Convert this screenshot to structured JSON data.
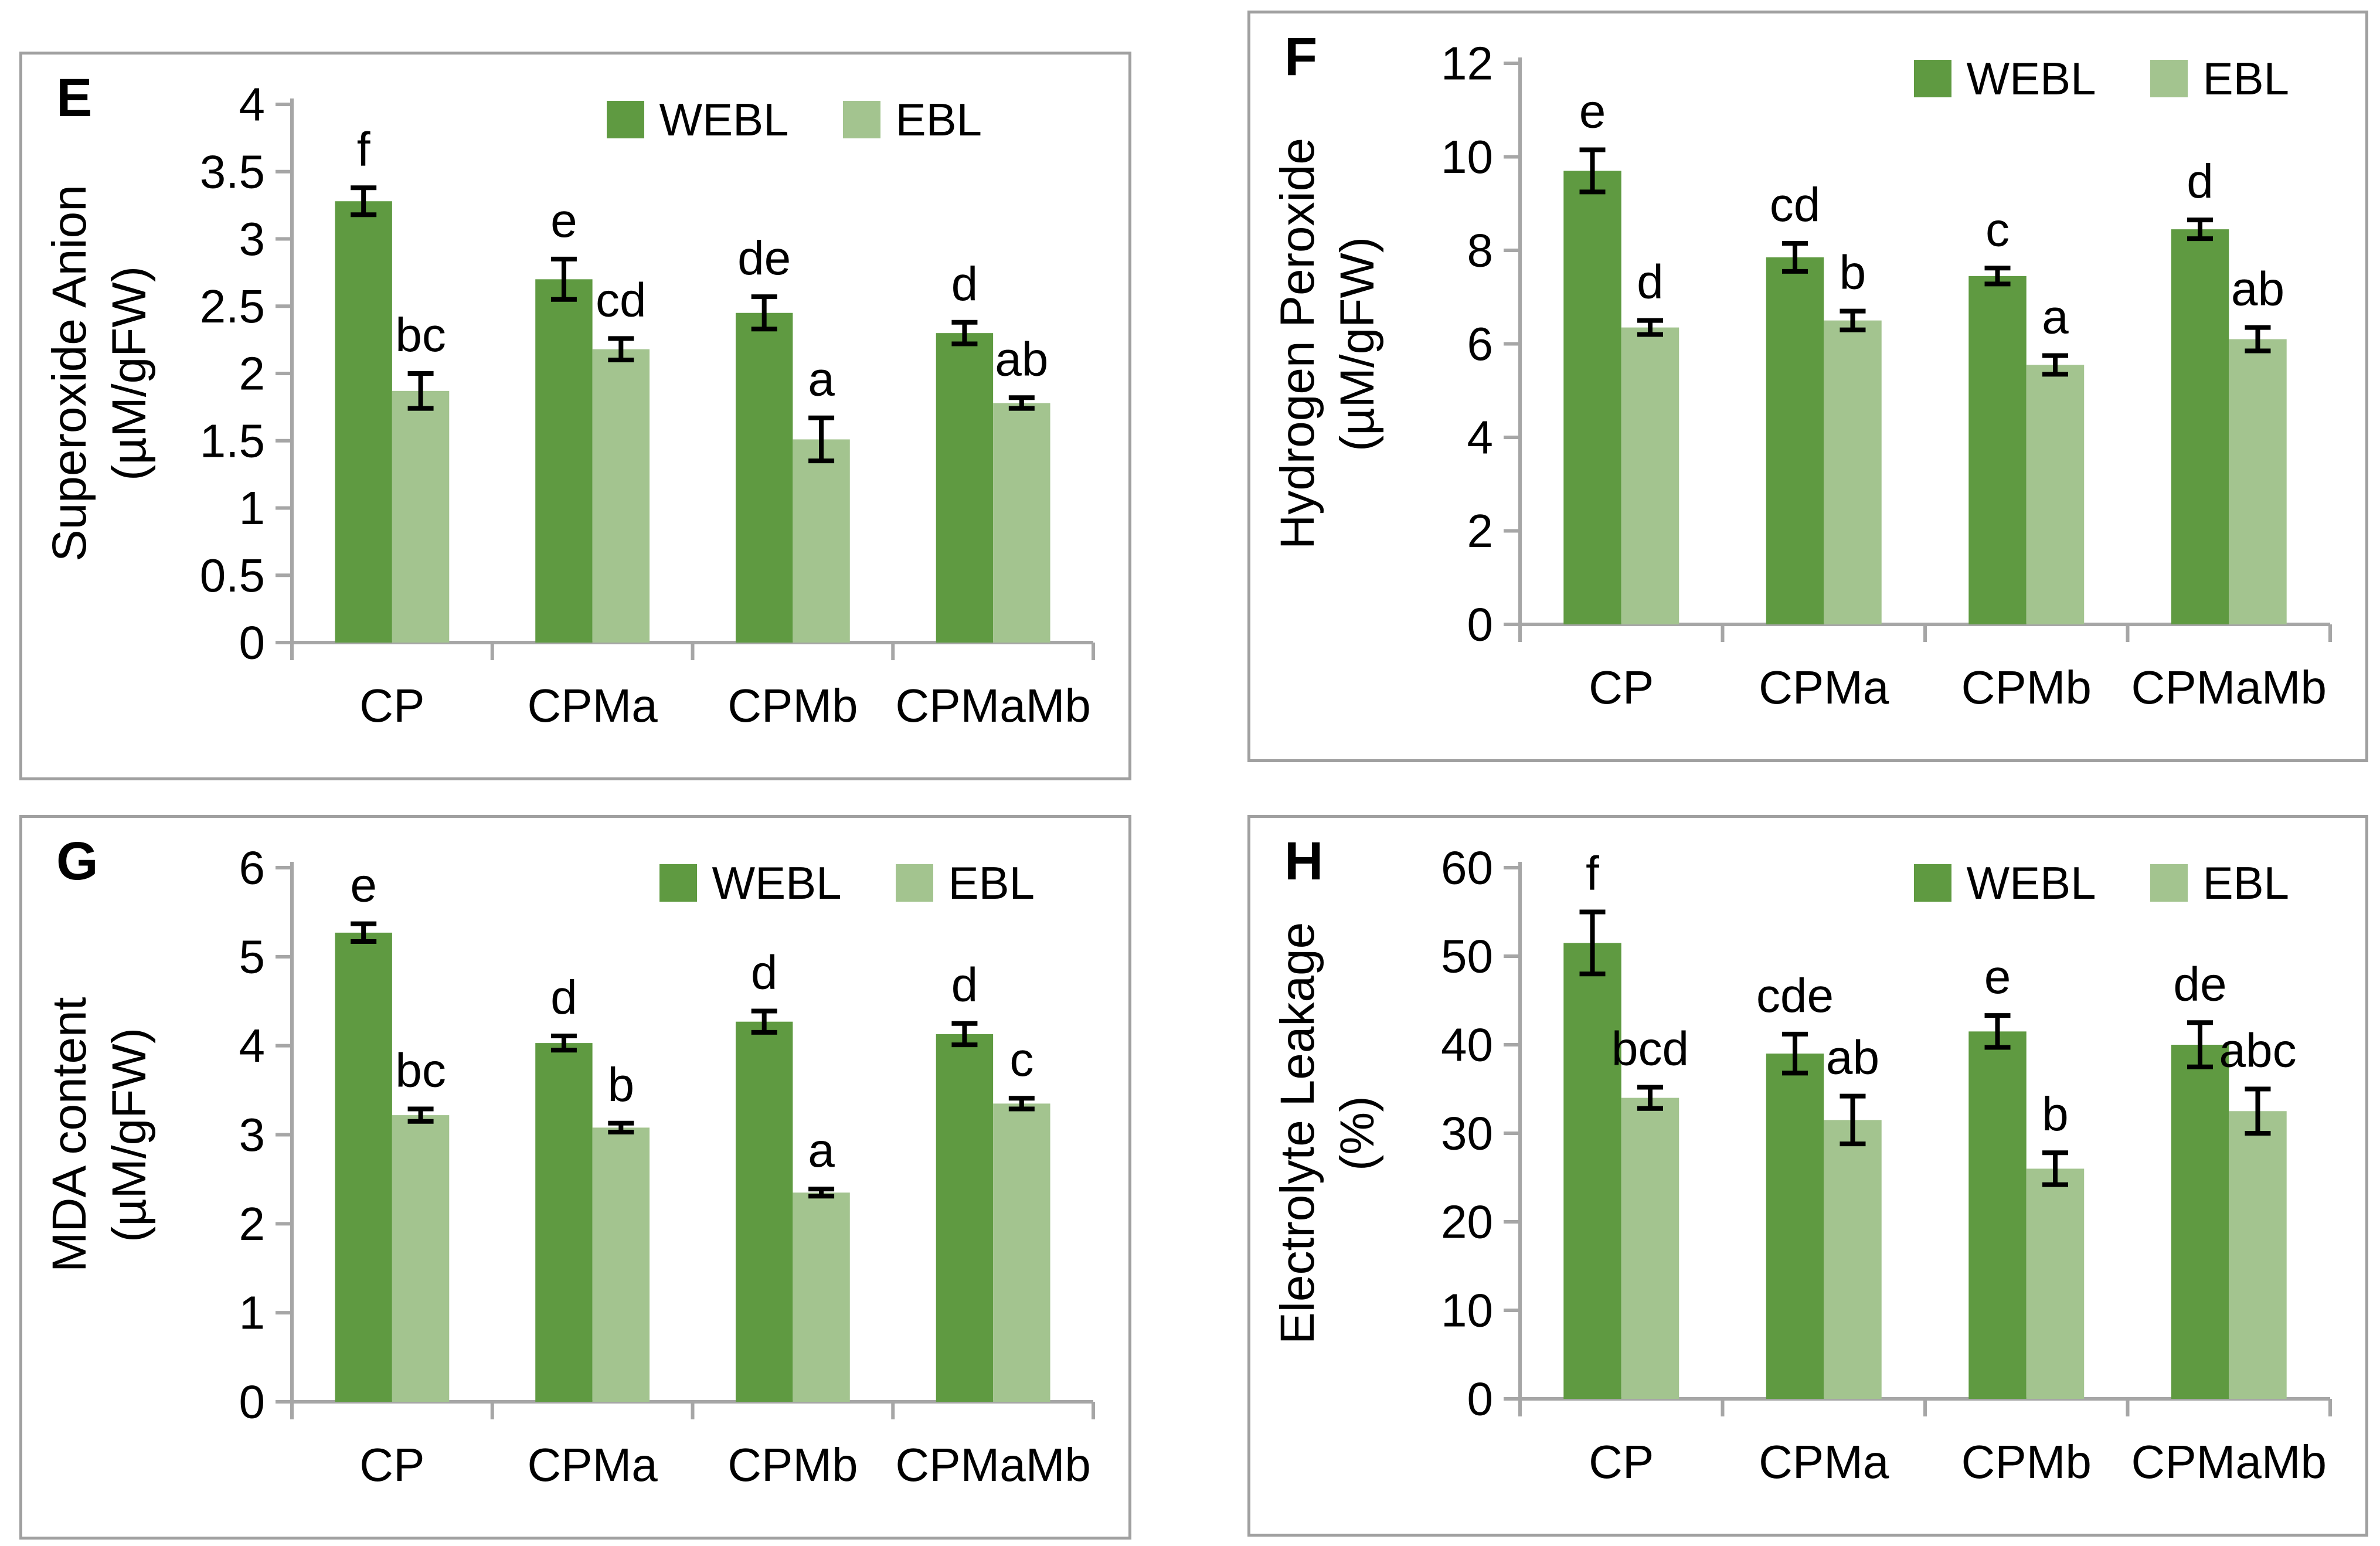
{
  "page": {
    "background": "#ffffff"
  },
  "colors": {
    "webl": "#5f9a41",
    "ebl": "#a3c48f",
    "axis": "#a6a6a6",
    "panel_border": "#a0a0a0",
    "error_bar": "#000000",
    "text": "#000000"
  },
  "chart_data": [
    {
      "panel_label": "E",
      "type": "bar",
      "categories": [
        "CP",
        "CPMa",
        "CPMb",
        "CPMaMb"
      ],
      "ylabel_lines": [
        "Superoxide Anion",
        "(µM/gFW)"
      ],
      "ylim": [
        0,
        4
      ],
      "ytick_values": [
        0,
        0.5,
        1,
        1.5,
        2,
        2.5,
        3,
        3.5,
        4
      ],
      "ytick_labels": [
        "0",
        "0.5",
        "1",
        "1.5",
        "2",
        "2.5",
        "3",
        "3.5",
        "4"
      ],
      "grid": false,
      "legend_position": "top-right",
      "series": [
        {
          "name": "WEBL",
          "values": [
            3.28,
            2.7,
            2.45,
            2.3
          ],
          "errors": [
            0.1,
            0.15,
            0.12,
            0.08
          ],
          "sig_letters": [
            "f",
            "e",
            "de",
            "d"
          ]
        },
        {
          "name": "EBL",
          "values": [
            1.87,
            2.18,
            1.51,
            1.78
          ],
          "errors": [
            0.13,
            0.08,
            0.16,
            0.04
          ],
          "sig_letters": [
            "bc",
            "cd",
            "a",
            "ab"
          ]
        }
      ]
    },
    {
      "panel_label": "F",
      "type": "bar",
      "categories": [
        "CP",
        "CPMa",
        "CPMb",
        "CPMaMb"
      ],
      "ylabel_lines": [
        "Hydrogen Peroxide",
        "(µM/gFW)"
      ],
      "ylim": [
        0,
        12
      ],
      "ytick_values": [
        0,
        2,
        4,
        6,
        8,
        10,
        12
      ],
      "ytick_labels": [
        "0",
        "2",
        "4",
        "6",
        "8",
        "10",
        "12"
      ],
      "grid": false,
      "legend_position": "top-right",
      "series": [
        {
          "name": "WEBL",
          "values": [
            9.7,
            7.85,
            7.45,
            8.45
          ],
          "errors": [
            0.45,
            0.3,
            0.17,
            0.2
          ],
          "sig_letters": [
            "e",
            "cd",
            "c",
            "d"
          ]
        },
        {
          "name": "EBL",
          "values": [
            6.35,
            6.5,
            5.55,
            6.1
          ],
          "errors": [
            0.15,
            0.2,
            0.2,
            0.25
          ],
          "sig_letters": [
            "d",
            "b",
            "a",
            "ab"
          ]
        }
      ]
    },
    {
      "panel_label": "G",
      "type": "bar",
      "categories": [
        "CP",
        "CPMa",
        "CPMb",
        "CPMaMb"
      ],
      "ylabel_lines": [
        "MDA content",
        "(µM/gFW)"
      ],
      "ylim": [
        0,
        6
      ],
      "ytick_values": [
        0,
        1,
        2,
        3,
        4,
        5,
        6
      ],
      "ytick_labels": [
        "0",
        "1",
        "2",
        "3",
        "4",
        "5",
        "6"
      ],
      "grid": false,
      "legend_position": "top-right",
      "series": [
        {
          "name": "WEBL",
          "values": [
            5.27,
            4.03,
            4.27,
            4.13
          ],
          "errors": [
            0.1,
            0.08,
            0.12,
            0.12
          ],
          "sig_letters": [
            "e",
            "d",
            "d",
            "d"
          ]
        },
        {
          "name": "EBL",
          "values": [
            3.22,
            3.08,
            2.35,
            3.35
          ],
          "errors": [
            0.07,
            0.05,
            0.04,
            0.06
          ],
          "sig_letters": [
            "bc",
            "b",
            "a",
            "c"
          ]
        }
      ]
    },
    {
      "panel_label": "H",
      "type": "bar",
      "categories": [
        "CP",
        "CPMa",
        "CPMb",
        "CPMaMb"
      ],
      "ylabel_lines": [
        "Electrolyte Leakage",
        "(%)"
      ],
      "ylim": [
        0,
        60
      ],
      "ytick_values": [
        0,
        10,
        20,
        30,
        40,
        50,
        60
      ],
      "ytick_labels": [
        "0",
        "10",
        "20",
        "30",
        "40",
        "50",
        "60"
      ],
      "grid": false,
      "legend_position": "top-right",
      "series": [
        {
          "name": "WEBL",
          "values": [
            51.5,
            39.0,
            41.5,
            40.0
          ],
          "errors": [
            3.5,
            2.2,
            1.8,
            2.5
          ],
          "sig_letters": [
            "f",
            "cde",
            "e",
            "de"
          ]
        },
        {
          "name": "EBL",
          "values": [
            34.0,
            31.5,
            26.0,
            32.5
          ],
          "errors": [
            1.2,
            2.7,
            1.8,
            2.5
          ],
          "sig_letters": [
            "bcd",
            "ab",
            "b",
            "abc"
          ]
        }
      ]
    }
  ]
}
